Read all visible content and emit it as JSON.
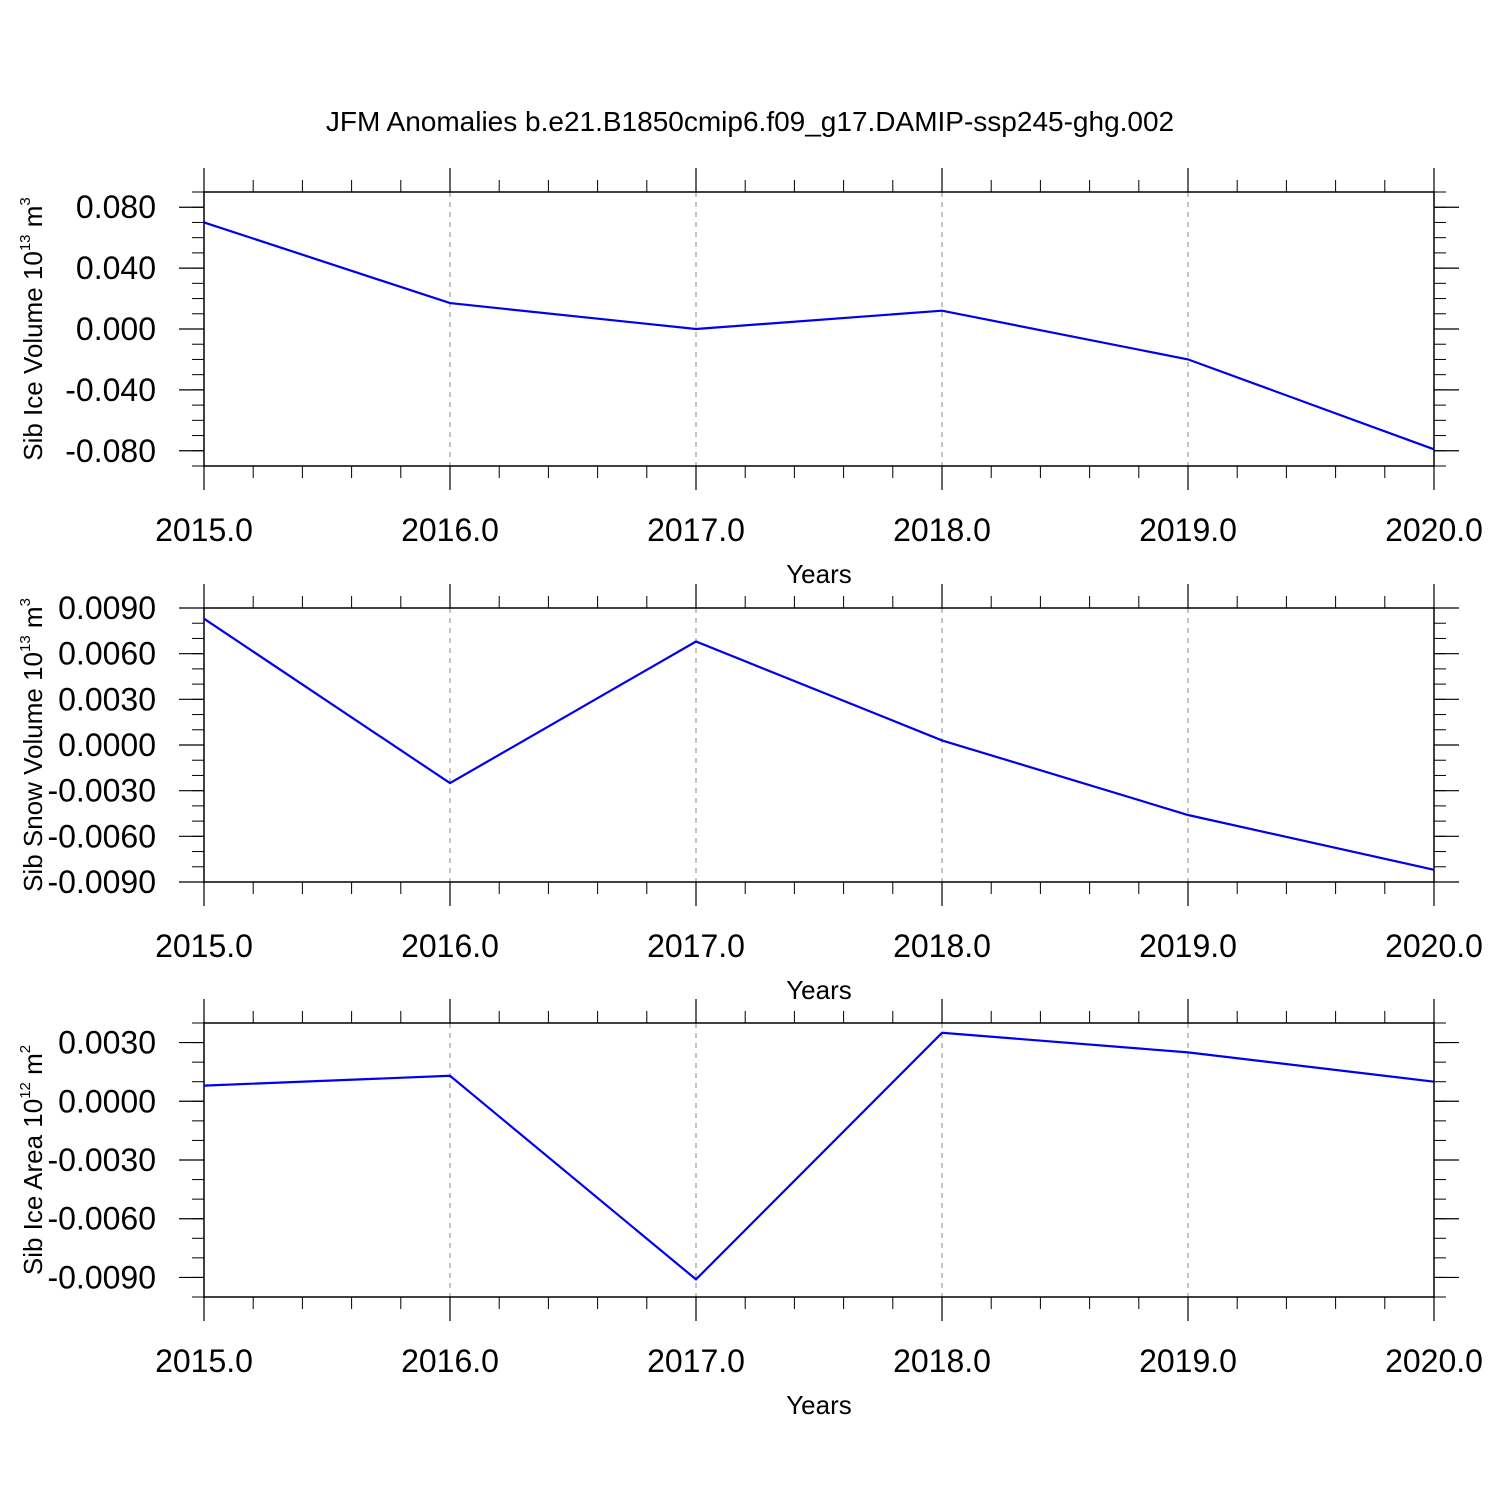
{
  "title": "JFM Anomalies b.e21.B1850cmip6.f09_g17.DAMIP-ssp245-ghg.002",
  "colors": {
    "line": "#0000ee",
    "axis": "#000000",
    "grid": "#888888"
  },
  "chart_data": [
    {
      "type": "line",
      "xlabel": "Years",
      "ylabel": {
        "text": "Sib Ice Volume 10",
        "exp": "13",
        "unit": " m",
        "unit_exp": "3"
      },
      "x": [
        2015,
        2016,
        2017,
        2018,
        2019,
        2020
      ],
      "values": [
        0.07,
        0.017,
        0.0,
        0.012,
        -0.02,
        -0.079
      ],
      "xlim": [
        2015,
        2020
      ],
      "ylim": [
        -0.09,
        0.09
      ],
      "x_ticks": [
        "2015.0",
        "2016.0",
        "2017.0",
        "2018.0",
        "2019.0",
        "2020.0"
      ],
      "y_ticks": [
        0.08,
        0.04,
        0.0,
        -0.04,
        -0.08
      ],
      "y_tick_labels": [
        "0.080",
        "0.040",
        "0.000",
        "-0.040",
        "-0.080"
      ],
      "y_minor_step": 0.01,
      "grid": "vertical dashed at major x ticks"
    },
    {
      "type": "line",
      "xlabel": "Years",
      "ylabel": {
        "text": "Sib Snow Volume 10",
        "exp": "13",
        "unit": " m",
        "unit_exp": "3"
      },
      "x": [
        2015,
        2016,
        2017,
        2018,
        2019,
        2020
      ],
      "values": [
        0.0083,
        -0.0025,
        0.0068,
        0.0003,
        -0.0046,
        -0.0082
      ],
      "xlim": [
        2015,
        2020
      ],
      "ylim": [
        -0.009,
        0.009
      ],
      "x_ticks": [
        "2015.0",
        "2016.0",
        "2017.0",
        "2018.0",
        "2019.0",
        "2020.0"
      ],
      "y_ticks": [
        0.009,
        0.006,
        0.003,
        0.0,
        -0.003,
        -0.006,
        -0.009
      ],
      "y_tick_labels": [
        "0.0090",
        "0.0060",
        "0.0030",
        "0.0000",
        "-0.0030",
        "-0.0060",
        "-0.0090"
      ],
      "y_minor_step": 0.001,
      "grid": "vertical dashed at major x ticks"
    },
    {
      "type": "line",
      "xlabel": "Years",
      "ylabel": {
        "text": "Sib Ice Area 10",
        "exp": "12",
        "unit": " m",
        "unit_exp": "2"
      },
      "x": [
        2015,
        2016,
        2017,
        2018,
        2019,
        2020
      ],
      "values": [
        0.0008,
        0.0013,
        -0.0091,
        0.0035,
        0.0025,
        0.001
      ],
      "xlim": [
        2015,
        2020
      ],
      "ylim": [
        -0.01,
        0.004
      ],
      "x_ticks": [
        "2015.0",
        "2016.0",
        "2017.0",
        "2018.0",
        "2019.0",
        "2020.0"
      ],
      "y_ticks": [
        0.003,
        0.0,
        -0.003,
        -0.006,
        -0.009
      ],
      "y_tick_labels": [
        "0.0030",
        "0.0000",
        "-0.0030",
        "-0.0060",
        "-0.0090"
      ],
      "y_minor_step": 0.001,
      "grid": "vertical dashed at major x ticks"
    }
  ]
}
